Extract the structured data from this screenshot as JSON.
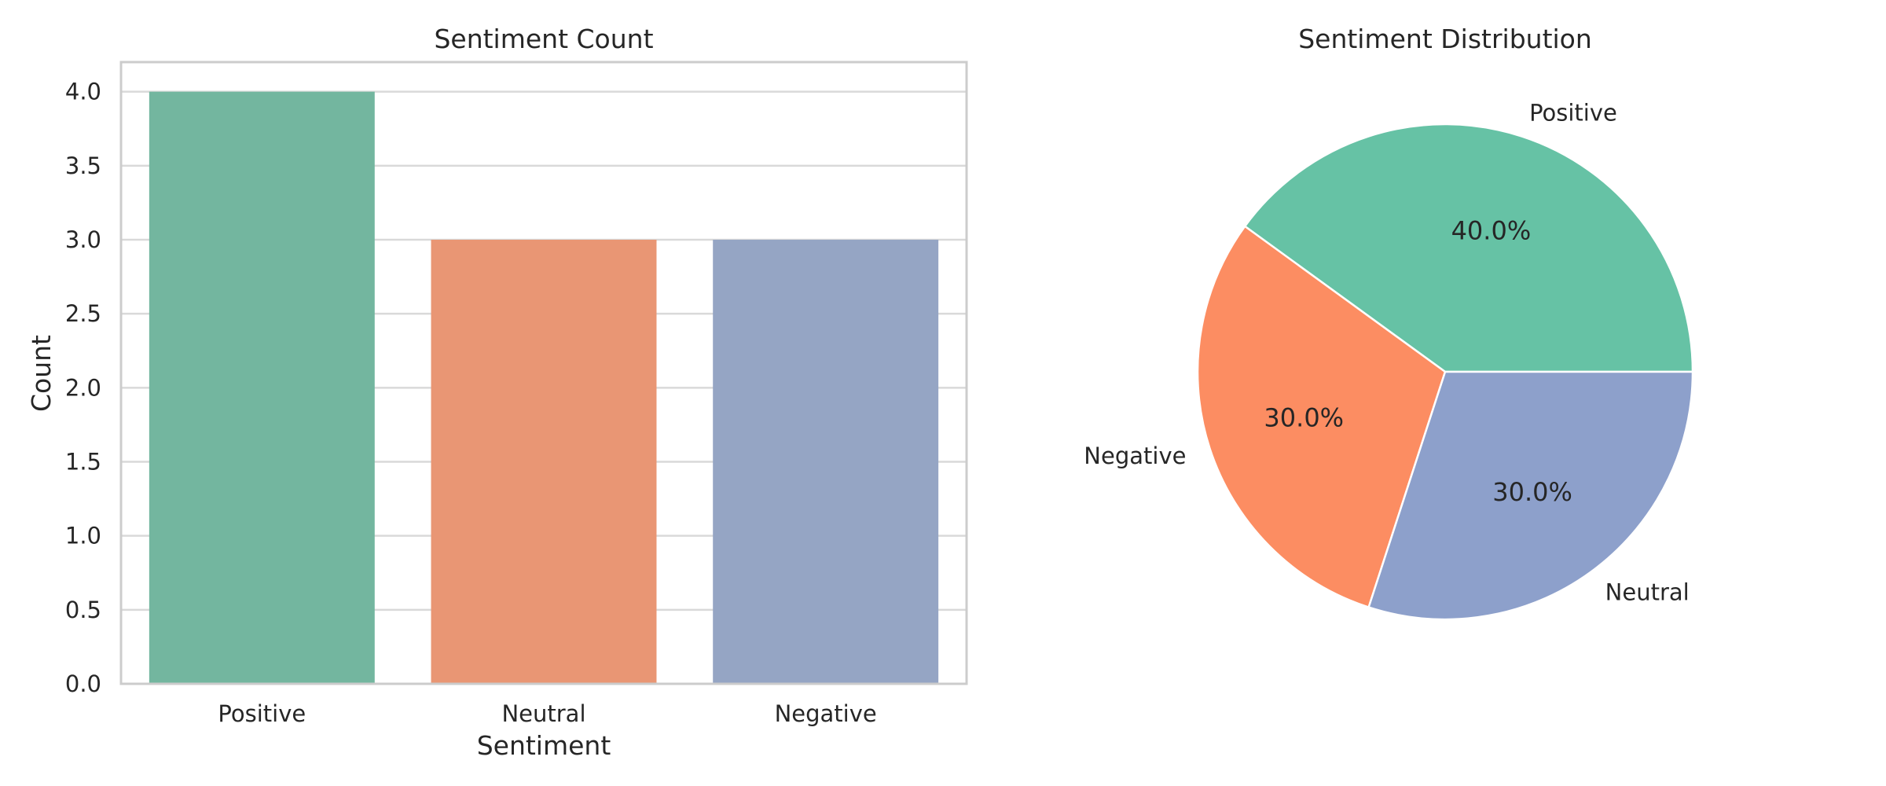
{
  "chart_data": [
    {
      "type": "bar",
      "title": "Sentiment Count",
      "xlabel": "Sentiment",
      "ylabel": "Count",
      "categories": [
        "Positive",
        "Neutral",
        "Negative"
      ],
      "values": [
        4,
        3,
        3
      ],
      "colors": [
        "#73b69f",
        "#e99674",
        "#95a5c4"
      ],
      "ylim": [
        0,
        4.2
      ],
      "yticks": [
        0,
        0.5,
        1,
        1.5,
        2,
        2.5,
        3,
        3.5,
        4
      ],
      "ytick_labels": [
        "0.0",
        "0.5",
        "1.0",
        "1.5",
        "2.0",
        "2.5",
        "3.0",
        "3.5",
        "4.0"
      ],
      "grid": true,
      "grid_color": "#d9d9d9",
      "frame_color": "#cccccc"
    },
    {
      "type": "pie",
      "title": "Sentiment Distribution",
      "labels": [
        "Positive",
        "Negative",
        "Neutral"
      ],
      "values": [
        40,
        30,
        30
      ],
      "pct_labels": [
        "40.0%",
        "30.0%",
        "30.0%"
      ],
      "colors": [
        "#66c2a5",
        "#fc8d62",
        "#8da0cb"
      ],
      "start_angle_deg": 0,
      "direction": "counterclockwise"
    }
  ]
}
